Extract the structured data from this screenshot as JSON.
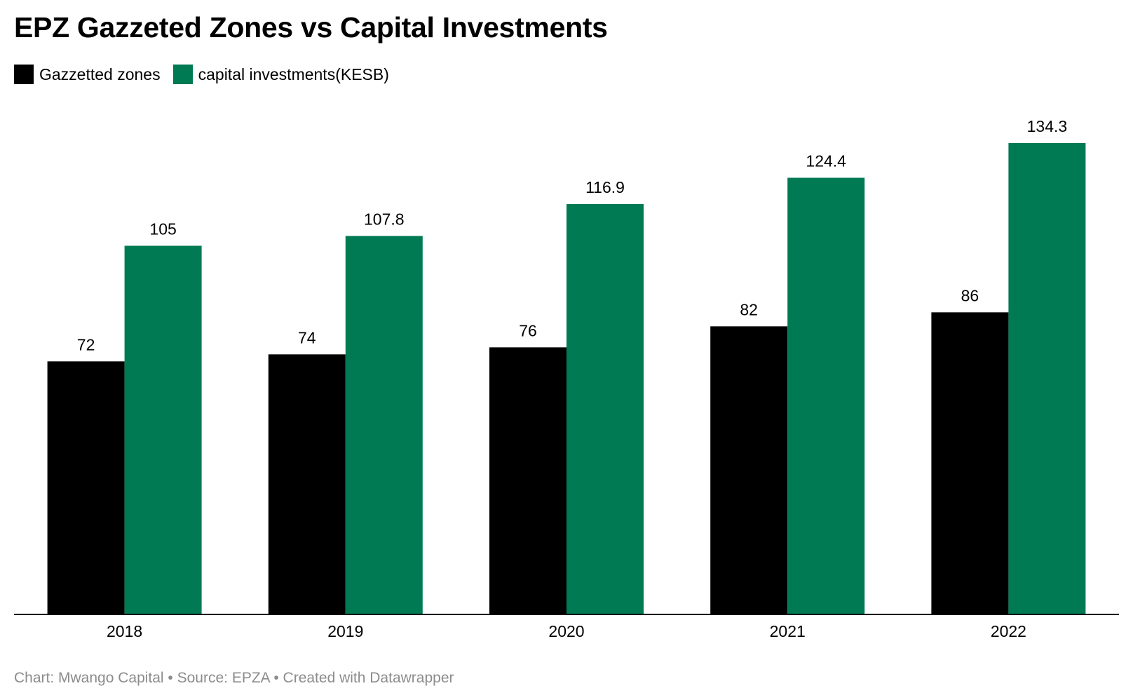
{
  "title": "EPZ Gazzeted Zones vs Capital Investments",
  "footer": "Chart: Mwango Capital • Source: EPZA • Created with Datawrapper",
  "chart_data": {
    "type": "bar",
    "title": "EPZ Gazzeted Zones vs Capital Investments",
    "categories": [
      "2018",
      "2019",
      "2020",
      "2021",
      "2022"
    ],
    "series": [
      {
        "name": "Gazzetted zones",
        "color": "#000000",
        "values": [
          72,
          74,
          76,
          82,
          86
        ]
      },
      {
        "name": "capital investments(KESB)",
        "color": "#007a53",
        "values": [
          105,
          107.8,
          116.9,
          124.4,
          134.3
        ]
      }
    ],
    "ylim": [
      0,
      134.3
    ],
    "grid": false,
    "legend": "top-left",
    "xlabel": "",
    "ylabel": ""
  }
}
